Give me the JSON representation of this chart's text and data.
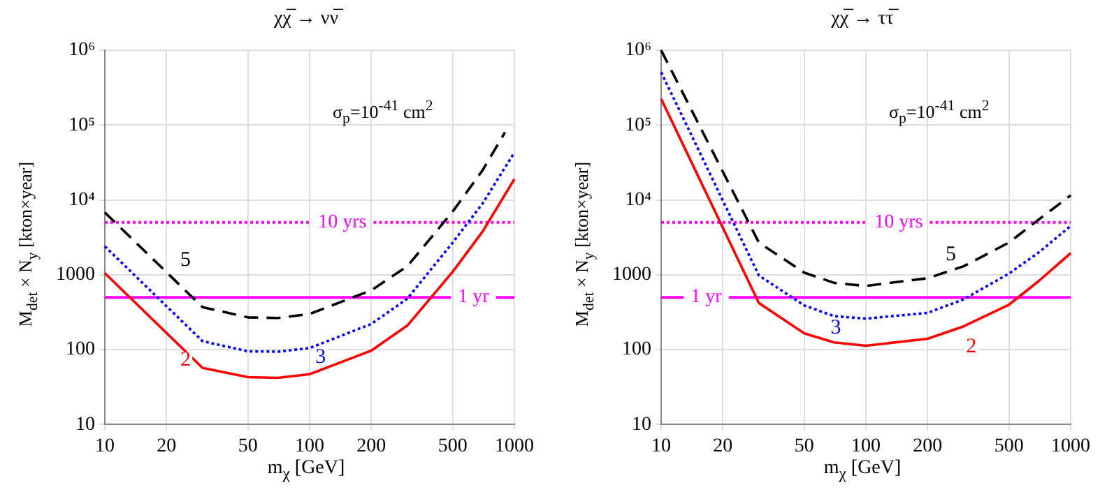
{
  "chart_data": [
    {
      "type": "line",
      "title": "χχ̅ → νν̅",
      "xlabel": "m$_{χ}$ [GeV]",
      "ylabel": "M$_{det}$ × N$_{y}$ [kton×year]",
      "log": "xy",
      "grid": true,
      "legend": false,
      "marker": "none",
      "x": [
        10,
        30,
        50,
        70,
        100,
        200,
        300,
        500,
        700,
        1000
      ],
      "xlim": [
        10,
        1000
      ],
      "xticks": [
        10,
        20,
        50,
        100,
        200,
        500,
        1000
      ],
      "ylim": [
        10,
        1000000
      ],
      "yticks": [
        10,
        100,
        1000,
        {
          "value": 10000,
          "label": "10⁴"
        },
        {
          "value": 100000,
          "label": "10⁵"
        },
        {
          "value": 1000000,
          "label": "10⁶"
        }
      ],
      "series": [
        {
          "name": "2",
          "color": "#ff0000",
          "line_style": "solid",
          "values": [
            1050,
            57,
            43,
            42,
            47,
            97,
            210,
            1100,
            3800,
            19000
          ]
        },
        {
          "name": "3",
          "color": "#0000ff",
          "line_style": "dotted",
          "values": [
            2400,
            130,
            95,
            94,
            105,
            220,
            480,
            2700,
            9000,
            43000
          ]
        },
        {
          "name": "5",
          "color": "#000000",
          "line_style": "dashed",
          "x": [
            10,
            30,
            50,
            70,
            100,
            200,
            300,
            500,
            700,
            900
          ],
          "values": [
            6800,
            370,
            270,
            265,
            300,
            620,
            1300,
            7000,
            25000,
            80000
          ]
        }
      ],
      "ref_lines": [
        {
          "axis": "y",
          "value": 5000,
          "label": "10 yrs",
          "color": "#ff00ff",
          "line_style": "dotted"
        },
        {
          "axis": "y",
          "value": 500,
          "label": "1 yr",
          "color": "#ff00ff",
          "line_style": "solid"
        }
      ],
      "annotations": [
        "σ$_{p}$=10$^{-41}$ cm$^{2}$"
      ]
    },
    {
      "type": "line",
      "title": "χχ̅ → ττ̅",
      "xlabel": "m$_{χ}$ [GeV]",
      "ylabel": "M$_{det}$ × N$_{y}$ [kton×year]",
      "log": "xy",
      "grid": true,
      "legend": false,
      "marker": "none",
      "x": [
        10,
        30,
        50,
        70,
        100,
        200,
        300,
        500,
        700,
        1000
      ],
      "xlim": [
        10,
        1000
      ],
      "xticks": [
        10,
        20,
        50,
        100,
        200,
        500,
        1000
      ],
      "ylim": [
        10,
        1000000
      ],
      "yticks": [
        10,
        100,
        1000,
        {
          "value": 10000,
          "label": "10⁴"
        },
        {
          "value": 100000,
          "label": "10⁵"
        },
        {
          "value": 1000000,
          "label": "10⁶"
        }
      ],
      "series": [
        {
          "name": "2",
          "color": "#ff0000",
          "line_style": "solid",
          "values": [
            224000,
            420,
            165,
            125,
            113,
            140,
            205,
            400,
            830,
            1950
          ]
        },
        {
          "name": "3",
          "color": "#0000ff",
          "line_style": "dotted",
          "values": [
            510000,
            980,
            390,
            280,
            260,
            310,
            470,
            1040,
            2000,
            4500
          ]
        },
        {
          "name": "5",
          "color": "#000000",
          "line_style": "dashed",
          "values": [
            1000000,
            2700,
            1070,
            780,
            710,
            900,
            1300,
            2700,
            5500,
            11500
          ]
        }
      ],
      "ref_lines": [
        {
          "axis": "y",
          "value": 5000,
          "label": "10 yrs",
          "color": "#ff00ff",
          "line_style": "dotted"
        },
        {
          "axis": "y",
          "value": 500,
          "label": "1 yr",
          "color": "#ff00ff",
          "line_style": "solid"
        }
      ],
      "annotations": [
        "σ$_{p}$=10$^{-41}$ cm$^{2}$"
      ]
    }
  ]
}
